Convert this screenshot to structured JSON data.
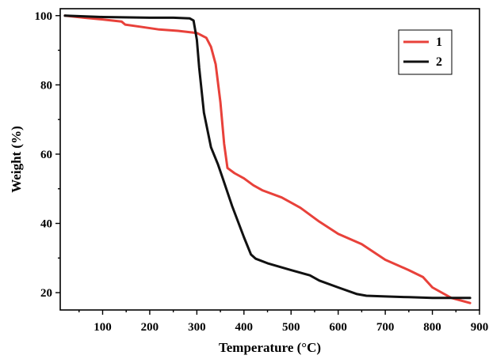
{
  "chart_data": {
    "type": "line",
    "title": "",
    "xlabel": "Temperature (°C)",
    "ylabel": "Weight (%)",
    "xlim": [
      10,
      900
    ],
    "ylim": [
      15,
      102
    ],
    "xticks": [
      100,
      200,
      300,
      400,
      500,
      600,
      700,
      800,
      900
    ],
    "yticks": [
      20,
      40,
      60,
      80,
      100
    ],
    "grid": false,
    "legend_position": "top-right",
    "series": [
      {
        "name": "1",
        "color": "#e8413a",
        "x": [
          20,
          60,
          100,
          140,
          148,
          180,
          220,
          260,
          300,
          320,
          330,
          340,
          350,
          358,
          365,
          380,
          400,
          420,
          440,
          480,
          500,
          520,
          560,
          600,
          650,
          700,
          750,
          780,
          800,
          840,
          880
        ],
        "y": [
          100.0,
          99.4,
          98.9,
          98.3,
          97.4,
          96.8,
          96.0,
          95.6,
          95.0,
          93.6,
          91.0,
          86.0,
          75.0,
          63.0,
          56.0,
          54.5,
          53.0,
          51.0,
          49.5,
          47.5,
          46.0,
          44.5,
          40.5,
          37.0,
          34.0,
          29.5,
          26.5,
          24.5,
          21.5,
          18.5,
          17.0
        ]
      },
      {
        "name": "2",
        "color": "#111111",
        "x": [
          20,
          100,
          200,
          250,
          285,
          293,
          300,
          305,
          315,
          330,
          345,
          355,
          375,
          400,
          415,
          425,
          450,
          500,
          540,
          560,
          600,
          640,
          660,
          700,
          750,
          800,
          850,
          880
        ],
        "y": [
          100.0,
          99.6,
          99.4,
          99.4,
          99.2,
          98.6,
          93.0,
          85.0,
          72.0,
          62.0,
          57.0,
          53.0,
          45.0,
          36.0,
          31.0,
          29.8,
          28.5,
          26.5,
          25.0,
          23.5,
          21.5,
          19.6,
          19.1,
          18.9,
          18.7,
          18.5,
          18.5,
          18.5
        ]
      }
    ]
  }
}
